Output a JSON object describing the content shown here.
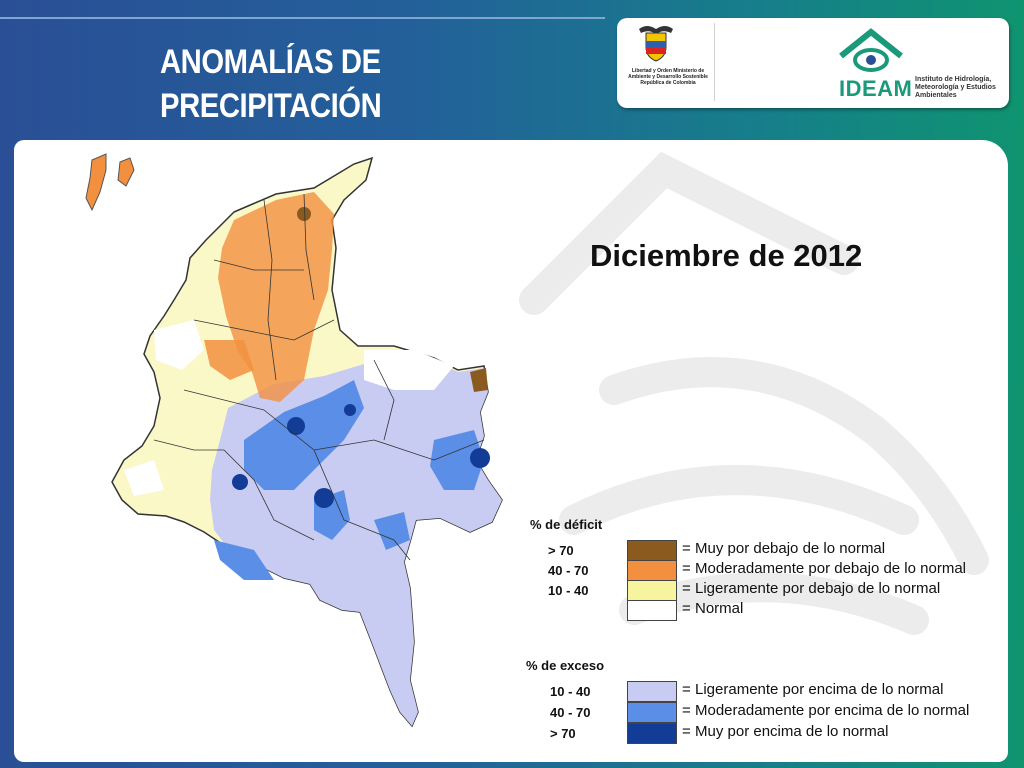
{
  "title": "ANOMALÍAS DE PRECIPITACIÓN",
  "logos": {
    "ministry_text": "Libertad y Orden Ministerio de Ambiente y Desarrollo Sostenible República de Colombia",
    "ideam_name": "IDEAM",
    "ideam_subtitle": "Instituto de Hidrología, Meteorología y Estudios Ambientales"
  },
  "map_heading": "Diciembre de 2012",
  "legend": {
    "deficit_header": "% de déficit",
    "excess_header": "% de exceso",
    "deficit_items": [
      {
        "range": "> 70",
        "color": "#8b5a1e",
        "label": "Muy por debajo de lo normal"
      },
      {
        "range": "40 -  70",
        "color": "#f29040",
        "label": "Moderadamente por debajo de lo normal"
      },
      {
        "range": "10 -  40",
        "color": "#f7f4a0",
        "label": "Ligeramente por debajo de lo normal"
      },
      {
        "range": "",
        "color": "#ffffff",
        "label": "Normal"
      }
    ],
    "excess_items": [
      {
        "range": "10 -  40",
        "color": "#c9ccf2",
        "label": "Ligeramente por encima de lo normal"
      },
      {
        "range": "40 -  70",
        "color": "#5b8ee6",
        "label": "Moderadamente por encima de lo normal"
      },
      {
        "range": "> 70",
        "color": "#123c96",
        "label": "Muy por encima de lo normal"
      }
    ],
    "equals": "="
  },
  "colors": {
    "title_text": "#ffffff",
    "background_left": "#2a4f96",
    "background_right": "#0f9470"
  }
}
